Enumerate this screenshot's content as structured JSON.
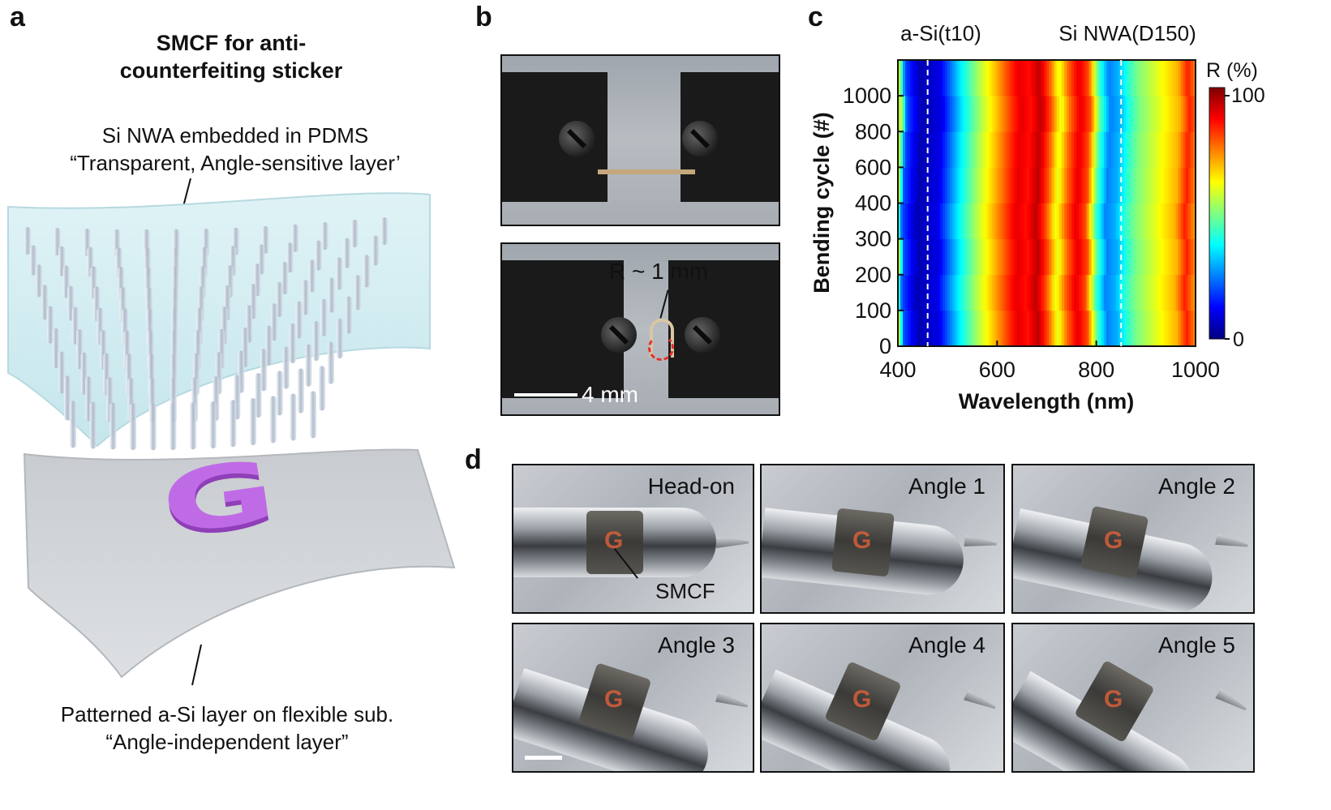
{
  "panels": {
    "a": {
      "letter": "a",
      "title_line1": "SMCF for anti-",
      "title_line2": "counterfeiting sticker",
      "top_label_line1": "Si NWA embedded in PDMS",
      "top_label_line2": "“Transparent, Angle-sensitive layer’",
      "bottom_label_line1": "Patterned a-Si layer on flexible sub.",
      "bottom_label_line2": "“Angle-independent layer”",
      "logo_letter": "G"
    },
    "b": {
      "letter": "b",
      "radius_label": "R ~ 1 mm",
      "scale_label": "4 mm"
    },
    "c": {
      "letter": "c"
    },
    "d": {
      "letter": "d",
      "photos": [
        "Head-on",
        "Angle 1",
        "Angle 2",
        "Angle 3",
        "Angle 4",
        "Angle 5"
      ],
      "pointer_label": "SMCF"
    }
  },
  "chart_data": {
    "type": "heatmap",
    "xlabel": "Wavelength (nm)",
    "ylabel": "Bending cycle (#)",
    "xlim": [
      400,
      1000
    ],
    "x_ticks": [
      "400",
      "600",
      "800",
      "1000"
    ],
    "y_categories": [
      "0",
      "100",
      "200",
      "300",
      "400",
      "600",
      "800",
      "1000"
    ],
    "annotation_left": "a-Si(t10)",
    "annotation_right": "Si NWA(D150)",
    "colorbar_title": "R (%)",
    "colorbar_min_label": "0",
    "colorbar_max_label": "100",
    "value_range": [
      0,
      100
    ],
    "dashed_lines_x": [
      460,
      850
    ],
    "wavelength_profile": [
      [
        400,
        55
      ],
      [
        410,
        20
      ],
      [
        440,
        5
      ],
      [
        480,
        10
      ],
      [
        520,
        35
      ],
      [
        560,
        55
      ],
      [
        590,
        68
      ],
      [
        620,
        82
      ],
      [
        640,
        90
      ],
      [
        660,
        86
      ],
      [
        680,
        94
      ],
      [
        700,
        80
      ],
      [
        720,
        60
      ],
      [
        740,
        78
      ],
      [
        760,
        90
      ],
      [
        780,
        80
      ],
      [
        800,
        45
      ],
      [
        820,
        25
      ],
      [
        840,
        30
      ],
      [
        860,
        42
      ],
      [
        880,
        50
      ],
      [
        900,
        55
      ],
      [
        920,
        60
      ],
      [
        940,
        65
      ],
      [
        960,
        70
      ],
      [
        980,
        85
      ],
      [
        1000,
        72
      ]
    ]
  }
}
